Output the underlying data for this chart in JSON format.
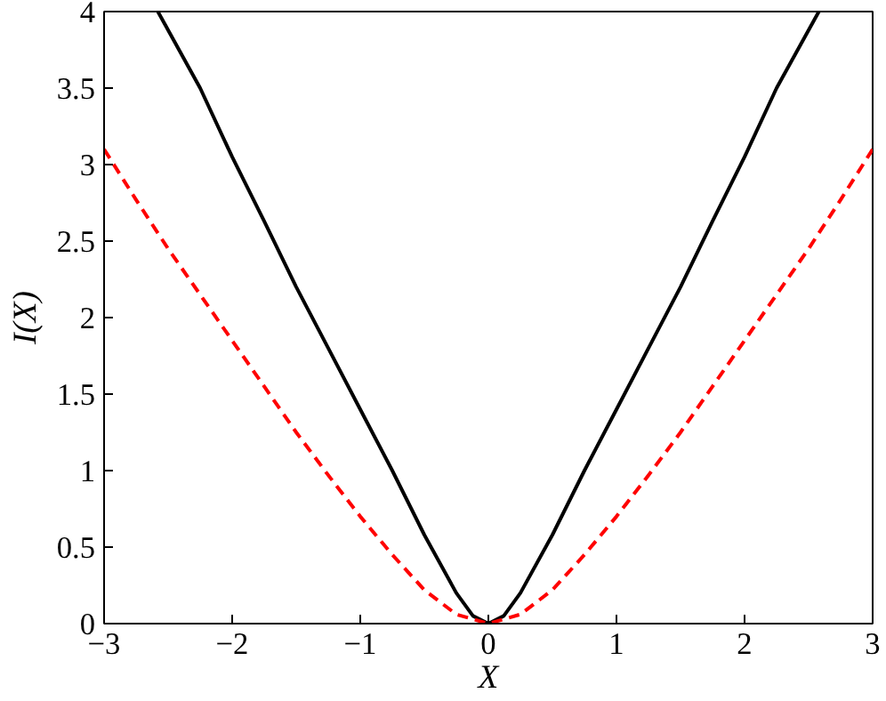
{
  "chart_data": {
    "type": "line",
    "xlabel": "X",
    "ylabel": "I(X)",
    "xlim": [
      -3,
      3
    ],
    "ylim": [
      0,
      4
    ],
    "xticks": [
      -3,
      -2,
      -1,
      0,
      1,
      2,
      3
    ],
    "yticks": [
      0,
      0.5,
      1,
      1.5,
      2,
      2.5,
      3,
      3.5,
      4
    ],
    "grid": false,
    "series": [
      {
        "color": "#000000",
        "line_style": "solid",
        "x": [
          -2.58,
          -2.25,
          -2,
          -1.75,
          -1.5,
          -1.25,
          -1,
          -0.75,
          -0.5,
          -0.25,
          -0.12,
          0,
          0.12,
          0.25,
          0.5,
          0.75,
          1,
          1.25,
          1.5,
          1.75,
          2,
          2.25,
          2.58
        ],
        "values": [
          4,
          3.5,
          3.05,
          2.63,
          2.2,
          1.8,
          1.4,
          1.0,
          0.58,
          0.2,
          0.05,
          0,
          0.05,
          0.2,
          0.58,
          1.0,
          1.4,
          1.8,
          2.2,
          2.63,
          3.05,
          3.5,
          4
        ]
      },
      {
        "color": "#ff0000",
        "line_style": "dashed",
        "x": [
          -3,
          -2.75,
          -2.5,
          -2.25,
          -2,
          -1.75,
          -1.5,
          -1.25,
          -1,
          -0.75,
          -0.5,
          -0.25,
          0,
          0.25,
          0.5,
          0.75,
          1,
          1.25,
          1.5,
          1.75,
          2,
          2.25,
          2.5,
          2.75,
          3
        ],
        "values": [
          3.1,
          2.77,
          2.45,
          2.15,
          1.85,
          1.55,
          1.25,
          0.97,
          0.7,
          0.45,
          0.22,
          0.06,
          0,
          0.06,
          0.22,
          0.45,
          0.7,
          0.97,
          1.25,
          1.55,
          1.85,
          2.15,
          2.45,
          2.77,
          3.1
        ]
      }
    ]
  }
}
